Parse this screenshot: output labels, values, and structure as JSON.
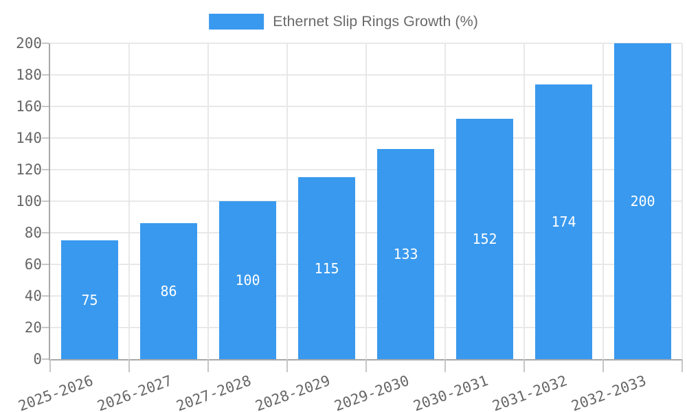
{
  "legend": {
    "label": "Ethernet Slip Rings Growth (%)"
  },
  "chart_data": {
    "type": "bar",
    "title": "Ethernet Slip Rings Growth (%)",
    "categories": [
      "2025-2026",
      "2026-2027",
      "2027-2028",
      "2028-2029",
      "2029-2030",
      "2030-2031",
      "2031-2032",
      "2032-2033"
    ],
    "values": [
      75,
      86,
      100,
      115,
      133,
      152,
      174,
      200
    ],
    "value_labels": [
      "75",
      "86",
      "100",
      "115",
      "133",
      "152",
      "174",
      "200"
    ],
    "xlabel": "",
    "ylabel": "",
    "ylim": [
      0,
      200
    ],
    "ytick_step": 20,
    "ytick_labels": [
      "0",
      "20",
      "40",
      "60",
      "80",
      "100",
      "120",
      "140",
      "160",
      "180",
      "200"
    ],
    "grid": true,
    "legend_position": "top-center",
    "x_label_rotation_deg": -20,
    "colors": {
      "bar": "#3999ee",
      "value_label": "#ffffff",
      "grid": "#e8e8e8",
      "axis": "#a8a8a8",
      "tick": "#c6c6c6",
      "tick_label": "#666666",
      "legend_text": "#6a6a6a",
      "background": "#ffffff"
    }
  }
}
